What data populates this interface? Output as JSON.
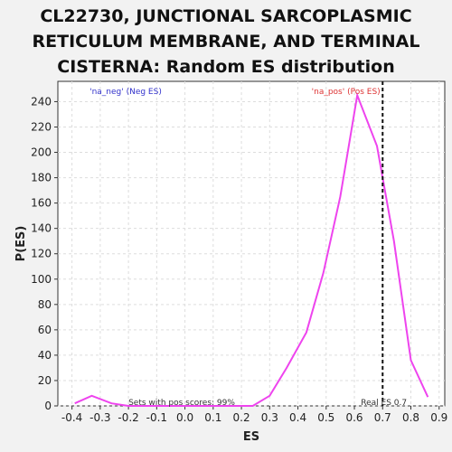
{
  "chart_data": {
    "type": "line",
    "title_lines": [
      "CL22730, JUNCTIONAL SARCOPLASMIC",
      "RETICULUM MEMBRANE, AND TERMINAL",
      "CISTERNA: Random ES distribution"
    ],
    "xlabel": "ES",
    "ylabel": "P(ES)",
    "xlim": [
      -0.45,
      0.92
    ],
    "ylim": [
      0,
      256
    ],
    "xticks": [
      -0.4,
      -0.3,
      -0.2,
      -0.1,
      0.0,
      0.1,
      0.2,
      0.3,
      0.4,
      0.5,
      0.6,
      0.7,
      0.8,
      0.9
    ],
    "xtick_labels": [
      "-0.4",
      "-0.3",
      "-0.2",
      "-0.1",
      "0.0",
      "0.1",
      "0.2",
      "0.3",
      "0.4",
      "0.5",
      "0.6",
      "0.7",
      "0.8",
      "0.9"
    ],
    "yticks": [
      0,
      20,
      40,
      60,
      80,
      100,
      120,
      140,
      160,
      180,
      200,
      220,
      240
    ],
    "ytick_labels": [
      "0",
      "20",
      "40",
      "60",
      "80",
      "100",
      "120",
      "140",
      "160",
      "180",
      "200",
      "220",
      "240"
    ],
    "grid": true,
    "series": [
      {
        "color": "#ee44ee",
        "x": [
          -0.39,
          -0.33,
          -0.26,
          -0.2,
          -0.14,
          -0.07,
          -0.01,
          0.05,
          0.11,
          0.18,
          0.24,
          0.3,
          0.36,
          0.43,
          0.49,
          0.55,
          0.61,
          0.68,
          0.74,
          0.8,
          0.86
        ],
        "y": [
          2,
          8,
          2,
          0,
          0,
          0,
          0,
          0,
          0,
          0,
          0,
          8,
          30,
          58,
          105,
          165,
          245,
          205,
          130,
          36,
          7
        ]
      }
    ],
    "real_es": 0.7,
    "annotations": {
      "neg_label": "'na_neg' (Neg ES)",
      "pos_label": "'na_pos' (Pos ES)",
      "sets_text": "Sets with pos scores: 99%",
      "real_es_text": "Real ES 0.7"
    },
    "colors": {
      "neg": "#3333cc",
      "pos": "#dd3333",
      "line": "#ee44ee"
    }
  }
}
